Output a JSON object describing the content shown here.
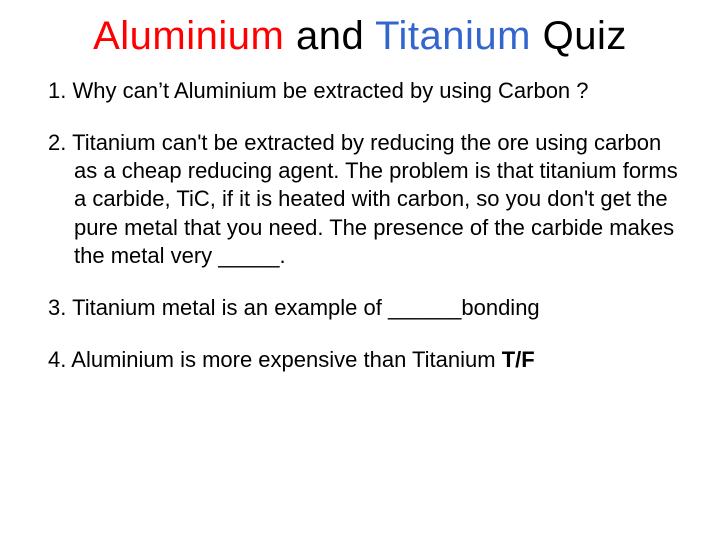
{
  "title": {
    "w1": "Aluminium",
    "w2": "and",
    "w3": "Titanium",
    "w4": "Quiz",
    "color_w1": "#ff0000",
    "color_w2": "#000000",
    "color_w3": "#3366cc",
    "color_w4": "#000000",
    "fontsize": 40
  },
  "body": {
    "fontsize": 22,
    "color": "#000000"
  },
  "questions": [
    {
      "num": "1.",
      "text": "Why can’t Aluminium be extracted by using Carbon ?",
      "num_pad": " "
    },
    {
      "num": "2.",
      "text": "Titanium can't be extracted by reducing the ore using carbon as a cheap reducing agent. The problem is that titanium forms a carbide, TiC, if it is heated with carbon, so you don't get the pure metal that you need. The presence of the carbide makes the metal very _____.",
      "num_pad": ""
    },
    {
      "num": "3.",
      "text": "Titanium metal is an example of ______bonding",
      "num_pad": ""
    },
    {
      "num": "4.",
      "text_before": "Aluminium is more expensive than Titanium ",
      "text_bold": "T/F",
      "num_pad": ""
    }
  ]
}
